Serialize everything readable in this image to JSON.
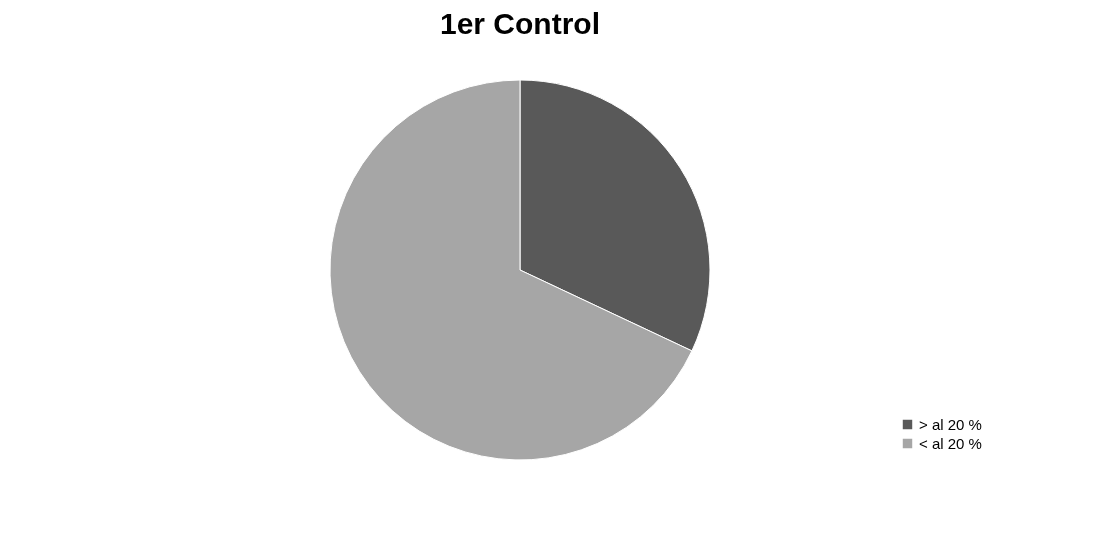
{
  "chart_data": {
    "type": "pie",
    "title": "1er Control",
    "categories": [
      "> al 20 %",
      "< al 20 %"
    ],
    "values": [
      32,
      68
    ],
    "colors": [
      "#595959",
      "#a6a6a6"
    ],
    "legend": "bottom right"
  }
}
